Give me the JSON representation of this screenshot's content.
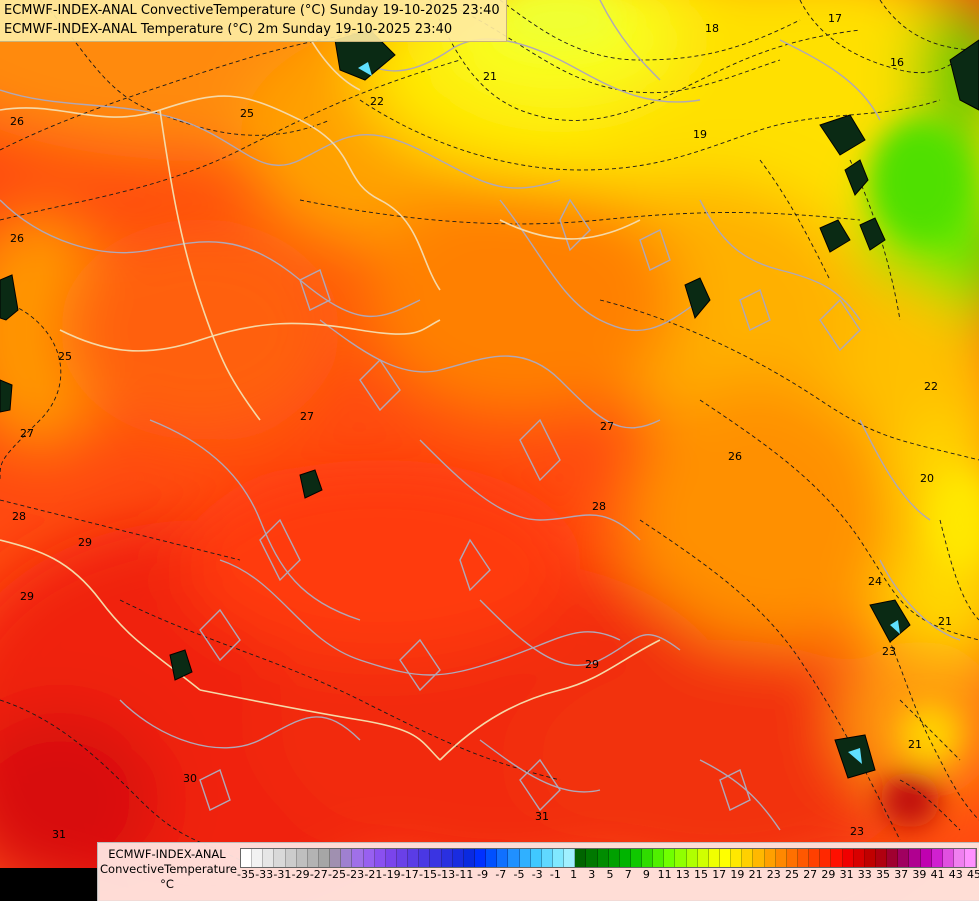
{
  "header": {
    "line1": "ECMWF-INDEX-ANAL ConvectiveTemperature (°C) Sunday 19-10-2025 23:40",
    "line2": "ECMWF-INDEX-ANAL Temperature (°C) 2m Sunday 19-10-2025 23:40"
  },
  "legend": {
    "line1": "ECMWF-INDEX-ANAL",
    "line2": "ConvectiveTemperature",
    "unit": "°C",
    "tick_labels": [
      "-35",
      "-33",
      "-31",
      "-29",
      "-27",
      "-25",
      "-23",
      "-21",
      "-19",
      "-17",
      "-15",
      "-13",
      "-11",
      "-9",
      "-7",
      "-5",
      "-3",
      "-1",
      "1",
      "3",
      "5",
      "7",
      "9",
      "11",
      "13",
      "15",
      "17",
      "19",
      "21",
      "23",
      "25",
      "27",
      "29",
      "31",
      "33",
      "35",
      "37",
      "39",
      "41",
      "43",
      "45"
    ],
    "colors": [
      "#ffffff",
      "#f2f2f2",
      "#e6e6e6",
      "#d9d9d9",
      "#cccccc",
      "#bfbfbf",
      "#b3b3b3",
      "#a6a6a6",
      "#a090b0",
      "#9f80d0",
      "#a070e8",
      "#9860f0",
      "#8a50f0",
      "#7a44ec",
      "#6a40e8",
      "#5a3ce6",
      "#4a38e4",
      "#3a34e2",
      "#2a30e0",
      "#1a2ce0",
      "#0a2ae0",
      "#0030ff",
      "#0050ff",
      "#1070ff",
      "#2090ff",
      "#30b0ff",
      "#40c8ff",
      "#60d8ff",
      "#80e8ff",
      "#a0f0ff",
      "#006400",
      "#007800",
      "#008c00",
      "#00a000",
      "#00b400",
      "#10c800",
      "#30dc00",
      "#50f000",
      "#70ff00",
      "#90ff00",
      "#b0ff00",
      "#d0ff00",
      "#f0ff00",
      "#ffff00",
      "#ffe800",
      "#ffd000",
      "#ffb800",
      "#ffa000",
      "#ff8800",
      "#ff7000",
      "#ff5800",
      "#ff4000",
      "#ff2800",
      "#ff1000",
      "#f00000",
      "#d80000",
      "#c00000",
      "#b00010",
      "#a00030",
      "#a00060",
      "#b00090",
      "#c000b0",
      "#d020d0",
      "#e050e0",
      "#f080f0",
      "#ff90ff"
    ]
  },
  "contour_labels": {
    "items": [
      "26",
      "25",
      "22",
      "21",
      "18",
      "17",
      "16",
      "19",
      "26",
      "25",
      "27",
      "22",
      "20",
      "27",
      "26",
      "28",
      "29",
      "29",
      "28",
      "30",
      "31",
      "31",
      "29",
      "23",
      "21",
      "21",
      "27",
      "24",
      "23"
    ]
  },
  "colors": {
    "deep_red": "#e01008",
    "red": "#f22a0c",
    "orange_red": "#ff5a10",
    "orange": "#ff8a10",
    "light_orange": "#ffb000",
    "yellow": "#ffe000",
    "yellow_green": "#e8ff00",
    "green": "#70f000",
    "dark_green": "#008c00"
  }
}
